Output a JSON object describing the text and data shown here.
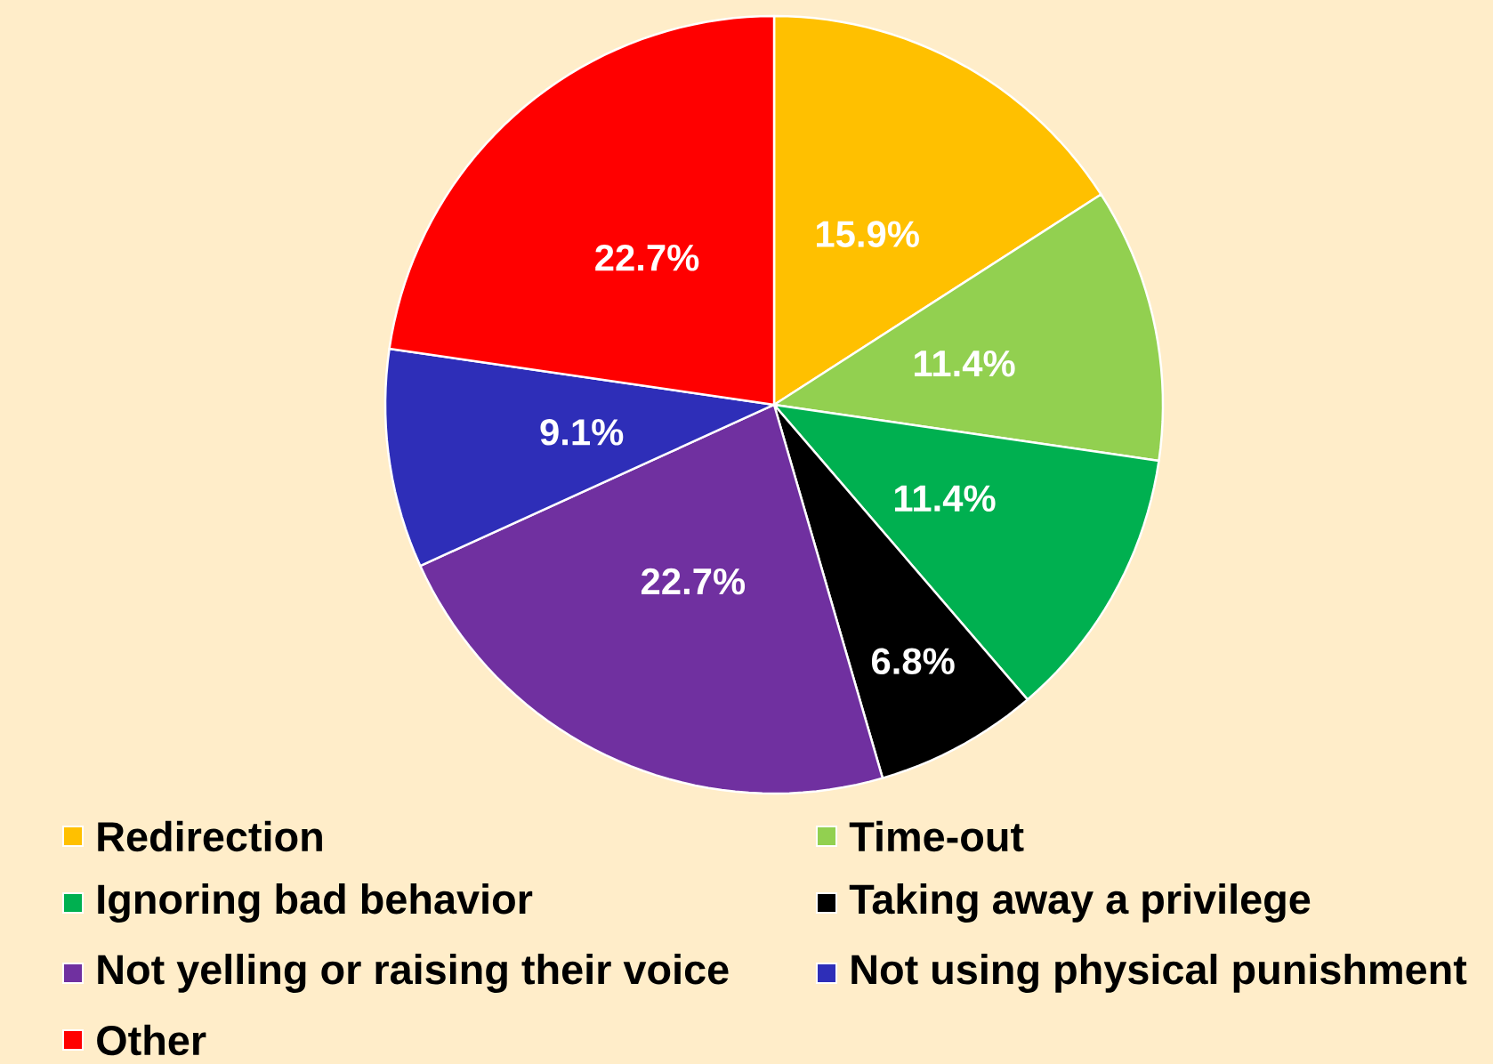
{
  "chart_data": {
    "type": "pie",
    "categories": [
      "Redirection",
      "Time-out",
      "Ignoring bad behavior",
      "Taking away a privilege",
      "Not yelling or raising their voice",
      "Not using physical punishment",
      "Other"
    ],
    "values": [
      15.9,
      11.4,
      11.4,
      6.8,
      22.7,
      9.1,
      22.7
    ],
    "value_labels": [
      "15.9%",
      "11.4%",
      "11.4%",
      "6.8%",
      "22.7%",
      "9.1%",
      "22.7%"
    ],
    "colors": [
      "#ffc000",
      "#92d050",
      "#00b050",
      "#000000",
      "#7030a0",
      "#2e2eb8",
      "#ff0000"
    ],
    "legend": "bottom"
  }
}
